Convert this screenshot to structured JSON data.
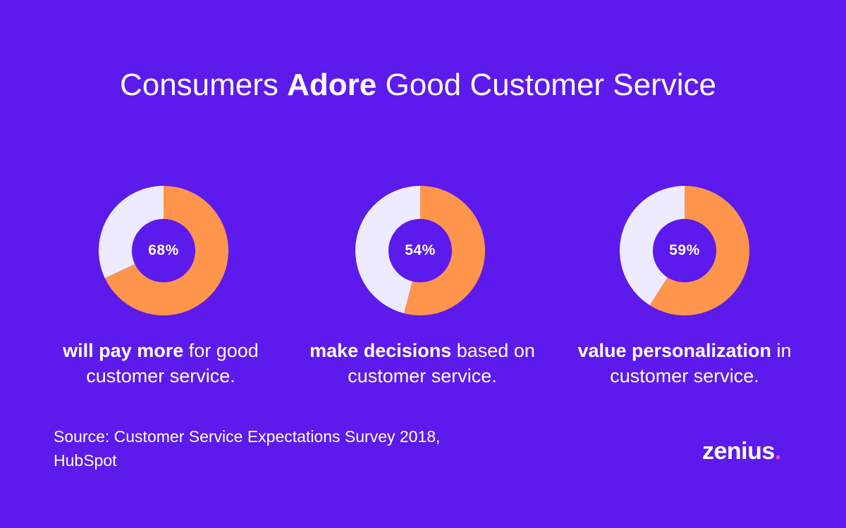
{
  "title": {
    "part1": "Consumers ",
    "bold": "Adore",
    "part2": " Good Customer Service"
  },
  "chart_data": {
    "type": "pie",
    "variant": "donut",
    "colors": {
      "primary": "#ff944d",
      "secondary": "#ecebff"
    },
    "charts": [
      {
        "value": 68,
        "label": "68%",
        "caption_bold": "will pay more",
        "caption_rest": " for good customer service."
      },
      {
        "value": 54,
        "label": "54%",
        "caption_bold": "make decisions",
        "caption_rest": " based on customer service."
      },
      {
        "value": 59,
        "label": "59%",
        "caption_bold": "value personalization",
        "caption_rest": " in customer service."
      }
    ]
  },
  "source": "Source: Customer Service Expectations Survey 2018, HubSpot",
  "logo": {
    "text": "zenius",
    "dot": "."
  }
}
